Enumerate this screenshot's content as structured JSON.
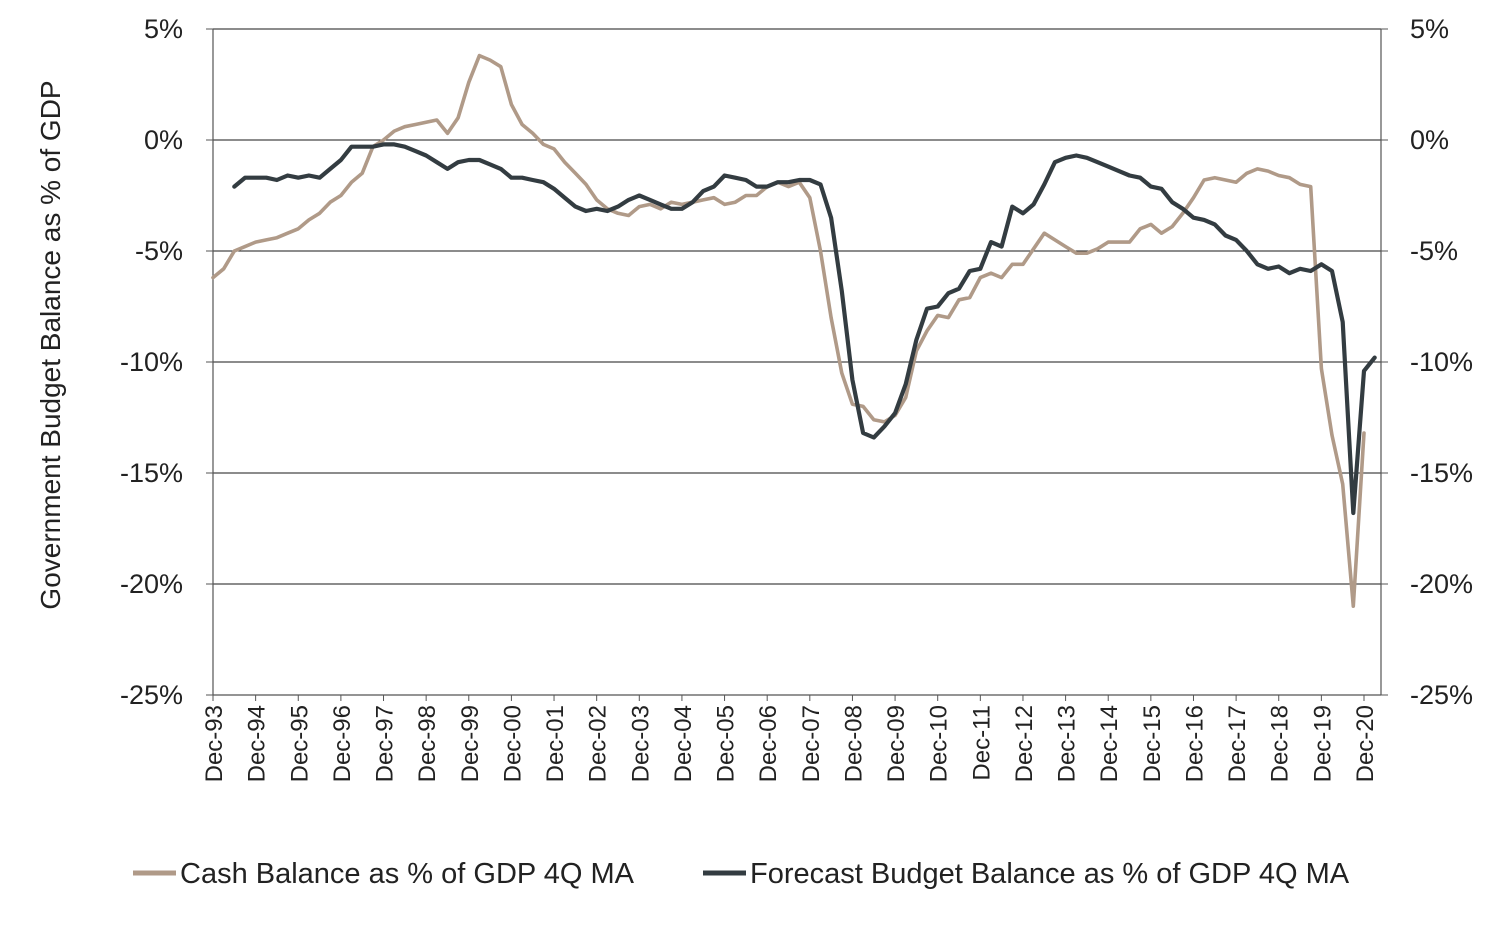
{
  "chart_data": {
    "type": "line",
    "title": "",
    "ylabel": "Government Budget Balance as % of GDP",
    "xlabel": "",
    "ylim": [
      -25,
      5
    ],
    "y_ticks": [
      "5%",
      "0%",
      "-5%",
      "-10%",
      "-15%",
      "-20%",
      "-25%"
    ],
    "y_tick_values": [
      5,
      0,
      -5,
      -10,
      -15,
      -20,
      -25
    ],
    "x_ticks": [
      "Dec-93",
      "Dec-94",
      "Dec-95",
      "Dec-96",
      "Dec-97",
      "Dec-98",
      "Dec-99",
      "Dec-00",
      "Dec-01",
      "Dec-02",
      "Dec-03",
      "Dec-04",
      "Dec-05",
      "Dec-06",
      "Dec-07",
      "Dec-08",
      "Dec-09",
      "Dec-10",
      "Dec-11",
      "Dec-12",
      "Dec-13",
      "Dec-14",
      "Dec-15",
      "Dec-16",
      "Dec-17",
      "Dec-18",
      "Dec-19",
      "Dec-20"
    ],
    "x_range": [
      1993.92,
      2020.92
    ],
    "grid": "horizontal",
    "legend_position": "bottom",
    "series": [
      {
        "name": "Cash Balance as % of GDP 4Q MA",
        "color": "#b09a88",
        "points": [
          [
            1993.92,
            -6.2
          ],
          [
            1994.17,
            -5.8
          ],
          [
            1994.42,
            -5.0
          ],
          [
            1994.67,
            -4.8
          ],
          [
            1994.92,
            -4.6
          ],
          [
            1995.17,
            -4.5
          ],
          [
            1995.42,
            -4.4
          ],
          [
            1995.67,
            -4.2
          ],
          [
            1995.92,
            -4.0
          ],
          [
            1996.17,
            -3.6
          ],
          [
            1996.42,
            -3.3
          ],
          [
            1996.67,
            -2.8
          ],
          [
            1996.92,
            -2.5
          ],
          [
            1997.17,
            -1.9
          ],
          [
            1997.42,
            -1.5
          ],
          [
            1997.67,
            -0.3
          ],
          [
            1997.92,
            0.0
          ],
          [
            1998.17,
            0.4
          ],
          [
            1998.42,
            0.6
          ],
          [
            1998.67,
            0.7
          ],
          [
            1998.92,
            0.8
          ],
          [
            1999.17,
            0.9
          ],
          [
            1999.42,
            0.3
          ],
          [
            1999.67,
            1.0
          ],
          [
            1999.92,
            2.6
          ],
          [
            2000.17,
            3.8
          ],
          [
            2000.42,
            3.6
          ],
          [
            2000.67,
            3.3
          ],
          [
            2000.92,
            1.6
          ],
          [
            2001.17,
            0.7
          ],
          [
            2001.42,
            0.3
          ],
          [
            2001.67,
            -0.2
          ],
          [
            2001.92,
            -0.4
          ],
          [
            2002.17,
            -1.0
          ],
          [
            2002.42,
            -1.5
          ],
          [
            2002.67,
            -2.0
          ],
          [
            2002.92,
            -2.7
          ],
          [
            2003.17,
            -3.1
          ],
          [
            2003.42,
            -3.3
          ],
          [
            2003.67,
            -3.4
          ],
          [
            2003.92,
            -3.0
          ],
          [
            2004.17,
            -2.9
          ],
          [
            2004.42,
            -3.1
          ],
          [
            2004.67,
            -2.8
          ],
          [
            2004.92,
            -2.9
          ],
          [
            2005.17,
            -2.8
          ],
          [
            2005.42,
            -2.7
          ],
          [
            2005.67,
            -2.6
          ],
          [
            2005.92,
            -2.9
          ],
          [
            2006.17,
            -2.8
          ],
          [
            2006.42,
            -2.5
          ],
          [
            2006.67,
            -2.5
          ],
          [
            2006.92,
            -2.1
          ],
          [
            2007.17,
            -1.9
          ],
          [
            2007.42,
            -2.1
          ],
          [
            2007.67,
            -1.9
          ],
          [
            2007.92,
            -2.6
          ],
          [
            2008.17,
            -5.0
          ],
          [
            2008.42,
            -8.0
          ],
          [
            2008.67,
            -10.5
          ],
          [
            2008.92,
            -11.9
          ],
          [
            2009.17,
            -12.0
          ],
          [
            2009.42,
            -12.6
          ],
          [
            2009.67,
            -12.7
          ],
          [
            2009.92,
            -12.4
          ],
          [
            2010.17,
            -11.6
          ],
          [
            2010.42,
            -9.5
          ],
          [
            2010.67,
            -8.6
          ],
          [
            2010.92,
            -7.9
          ],
          [
            2011.17,
            -8.0
          ],
          [
            2011.42,
            -7.2
          ],
          [
            2011.67,
            -7.1
          ],
          [
            2011.92,
            -6.2
          ],
          [
            2012.17,
            -6.0
          ],
          [
            2012.42,
            -6.2
          ],
          [
            2012.67,
            -5.6
          ],
          [
            2012.92,
            -5.6
          ],
          [
            2013.17,
            -4.9
          ],
          [
            2013.42,
            -4.2
          ],
          [
            2013.67,
            -4.5
          ],
          [
            2013.92,
            -4.8
          ],
          [
            2014.17,
            -5.1
          ],
          [
            2014.42,
            -5.1
          ],
          [
            2014.67,
            -4.9
          ],
          [
            2014.92,
            -4.6
          ],
          [
            2015.17,
            -4.6
          ],
          [
            2015.42,
            -4.6
          ],
          [
            2015.67,
            -4.0
          ],
          [
            2015.92,
            -3.8
          ],
          [
            2016.17,
            -4.2
          ],
          [
            2016.42,
            -3.9
          ],
          [
            2016.67,
            -3.3
          ],
          [
            2016.92,
            -2.6
          ],
          [
            2017.17,
            -1.8
          ],
          [
            2017.42,
            -1.7
          ],
          [
            2017.67,
            -1.8
          ],
          [
            2017.92,
            -1.9
          ],
          [
            2018.17,
            -1.5
          ],
          [
            2018.42,
            -1.3
          ],
          [
            2018.67,
            -1.4
          ],
          [
            2018.92,
            -1.6
          ],
          [
            2019.17,
            -1.7
          ],
          [
            2019.42,
            -2.0
          ],
          [
            2019.67,
            -2.1
          ],
          [
            2019.92,
            -10.3
          ],
          [
            2020.17,
            -13.3
          ],
          [
            2020.42,
            -15.5
          ],
          [
            2020.67,
            -21.0
          ],
          [
            2020.92,
            -13.2
          ]
        ]
      },
      {
        "name": "Forecast Budget Balance as % of GDP 4Q MA",
        "color": "#333c41",
        "points": [
          [
            1994.42,
            -2.1
          ],
          [
            1994.67,
            -1.7
          ],
          [
            1994.92,
            -1.7
          ],
          [
            1995.17,
            -1.7
          ],
          [
            1995.42,
            -1.8
          ],
          [
            1995.67,
            -1.6
          ],
          [
            1995.92,
            -1.7
          ],
          [
            1996.17,
            -1.6
          ],
          [
            1996.42,
            -1.7
          ],
          [
            1996.67,
            -1.3
          ],
          [
            1996.92,
            -0.9
          ],
          [
            1997.17,
            -0.3
          ],
          [
            1997.42,
            -0.3
          ],
          [
            1997.67,
            -0.3
          ],
          [
            1997.92,
            -0.2
          ],
          [
            1998.17,
            -0.2
          ],
          [
            1998.42,
            -0.3
          ],
          [
            1998.67,
            -0.5
          ],
          [
            1998.92,
            -0.7
          ],
          [
            1999.17,
            -1.0
          ],
          [
            1999.42,
            -1.3
          ],
          [
            1999.67,
            -1.0
          ],
          [
            1999.92,
            -0.9
          ],
          [
            2000.17,
            -0.9
          ],
          [
            2000.42,
            -1.1
          ],
          [
            2000.67,
            -1.3
          ],
          [
            2000.92,
            -1.7
          ],
          [
            2001.17,
            -1.7
          ],
          [
            2001.42,
            -1.8
          ],
          [
            2001.67,
            -1.9
          ],
          [
            2001.92,
            -2.2
          ],
          [
            2002.17,
            -2.6
          ],
          [
            2002.42,
            -3.0
          ],
          [
            2002.67,
            -3.2
          ],
          [
            2002.92,
            -3.1
          ],
          [
            2003.17,
            -3.2
          ],
          [
            2003.42,
            -3.0
          ],
          [
            2003.67,
            -2.7
          ],
          [
            2003.92,
            -2.5
          ],
          [
            2004.17,
            -2.7
          ],
          [
            2004.42,
            -2.9
          ],
          [
            2004.67,
            -3.1
          ],
          [
            2004.92,
            -3.1
          ],
          [
            2005.17,
            -2.8
          ],
          [
            2005.42,
            -2.3
          ],
          [
            2005.67,
            -2.1
          ],
          [
            2005.92,
            -1.6
          ],
          [
            2006.17,
            -1.7
          ],
          [
            2006.42,
            -1.8
          ],
          [
            2006.67,
            -2.1
          ],
          [
            2006.92,
            -2.1
          ],
          [
            2007.17,
            -1.9
          ],
          [
            2007.42,
            -1.9
          ],
          [
            2007.67,
            -1.8
          ],
          [
            2007.92,
            -1.8
          ],
          [
            2008.17,
            -2.0
          ],
          [
            2008.42,
            -3.5
          ],
          [
            2008.67,
            -6.8
          ],
          [
            2008.92,
            -10.8
          ],
          [
            2009.17,
            -13.2
          ],
          [
            2009.42,
            -13.4
          ],
          [
            2009.67,
            -12.9
          ],
          [
            2009.92,
            -12.3
          ],
          [
            2010.17,
            -11.0
          ],
          [
            2010.42,
            -9.0
          ],
          [
            2010.67,
            -7.6
          ],
          [
            2010.92,
            -7.5
          ],
          [
            2011.17,
            -6.9
          ],
          [
            2011.42,
            -6.7
          ],
          [
            2011.67,
            -5.9
          ],
          [
            2011.92,
            -5.8
          ],
          [
            2012.17,
            -4.6
          ],
          [
            2012.42,
            -4.8
          ],
          [
            2012.67,
            -3.0
          ],
          [
            2012.92,
            -3.3
          ],
          [
            2013.17,
            -2.9
          ],
          [
            2013.42,
            -2.0
          ],
          [
            2013.67,
            -1.0
          ],
          [
            2013.92,
            -0.8
          ],
          [
            2014.17,
            -0.7
          ],
          [
            2014.42,
            -0.8
          ],
          [
            2014.67,
            -1.0
          ],
          [
            2014.92,
            -1.2
          ],
          [
            2015.17,
            -1.4
          ],
          [
            2015.42,
            -1.6
          ],
          [
            2015.67,
            -1.7
          ],
          [
            2015.92,
            -2.1
          ],
          [
            2016.17,
            -2.2
          ],
          [
            2016.42,
            -2.8
          ],
          [
            2016.67,
            -3.1
          ],
          [
            2016.92,
            -3.5
          ],
          [
            2017.17,
            -3.6
          ],
          [
            2017.42,
            -3.8
          ],
          [
            2017.67,
            -4.3
          ],
          [
            2017.92,
            -4.5
          ],
          [
            2018.17,
            -5.0
          ],
          [
            2018.42,
            -5.6
          ],
          [
            2018.67,
            -5.8
          ],
          [
            2018.92,
            -5.7
          ],
          [
            2019.17,
            -6.0
          ],
          [
            2019.42,
            -5.8
          ],
          [
            2019.67,
            -5.9
          ],
          [
            2019.92,
            -5.6
          ],
          [
            2020.17,
            -5.9
          ],
          [
            2020.42,
            -8.2
          ],
          [
            2020.67,
            -16.8
          ],
          [
            2020.92,
            -10.4
          ],
          [
            2021.17,
            -9.8
          ]
        ]
      }
    ]
  }
}
